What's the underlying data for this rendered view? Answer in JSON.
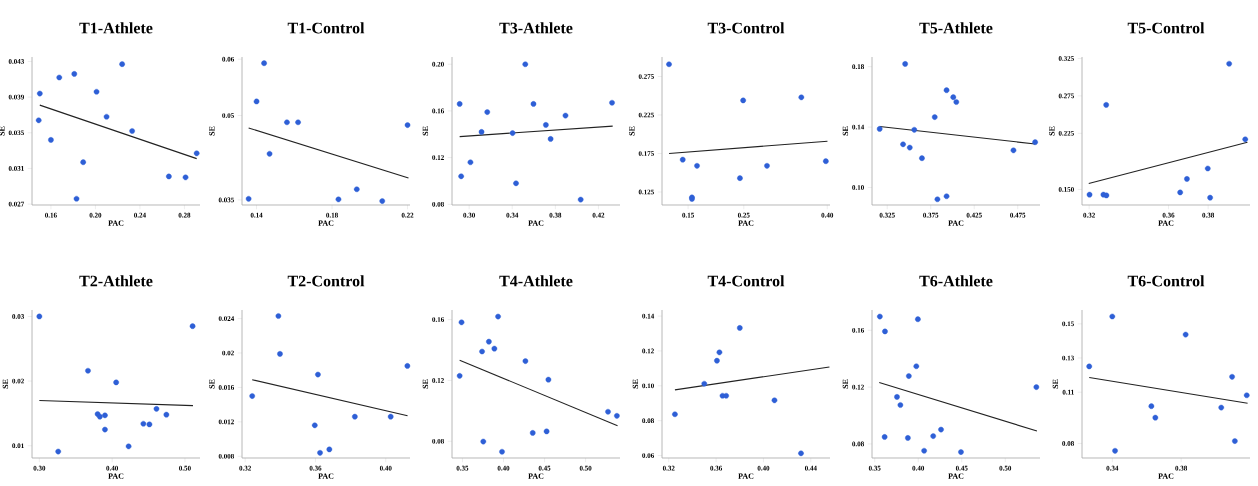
{
  "chart_data": [
    {
      "type": "scatter",
      "title": "T1-Athlete",
      "xlabel": "PAC",
      "ylabel": "SE",
      "xlim": [
        0.143,
        0.294
      ],
      "ylim": [
        0.0269,
        0.0435
      ],
      "xticks": [
        0.16,
        {
          "value": 0.2,
          "label": "0.20"
        },
        0.24,
        0.28
      ],
      "yticks": [
        0.027,
        0.031,
        0.035,
        0.039,
        0.043
      ],
      "series": [
        {
          "type": "scatter",
          "marker": "circle",
          "color": "#2e5fd6",
          "x": [
            0.15,
            0.149,
            0.16,
            0.1675,
            0.181,
            0.189,
            0.183,
            0.201,
            0.21,
            0.224,
            0.233,
            0.266,
            0.281,
            0.291
          ],
          "values": [
            0.0394,
            0.0364,
            0.0342,
            0.0412,
            0.0416,
            0.0317,
            0.0276,
            0.0396,
            0.0368,
            0.0427,
            0.0352,
            0.0301,
            0.03,
            0.0327
          ]
        },
        {
          "type": "line",
          "color": "#222222",
          "x": [
            0.15,
            0.291
          ],
          "values": [
            0.0381,
            0.0321
          ]
        }
      ]
    },
    {
      "type": "scatter",
      "title": "T1-Control",
      "xlabel": "PAC",
      "ylabel": "SE",
      "xlim": [
        0.1323,
        0.2213
      ],
      "ylim": [
        0.0341,
        0.0604
      ],
      "xticks": [
        0.14,
        0.18,
        0.22
      ],
      "yticks": [
        0.035,
        {
          "value": 0.05,
          "label": "0.05"
        },
        {
          "value": 0.06,
          "label": "0.06"
        }
      ],
      "series": [
        {
          "type": "scatter",
          "marker": "circle",
          "color": "#2e5fd6",
          "x": [
            0.1358,
            0.14,
            0.144,
            0.1469,
            0.1561,
            0.162,
            0.1834,
            0.1931,
            0.2066,
            0.22
          ],
          "values": [
            0.0352,
            0.0525,
            0.0593,
            0.0432,
            0.0488,
            0.0488,
            0.0351,
            0.0369,
            0.0348,
            0.0483
          ]
        },
        {
          "type": "line",
          "color": "#222222",
          "x": [
            0.1358,
            0.2205
          ],
          "values": [
            0.0478,
            0.0389
          ]
        }
      ]
    },
    {
      "type": "scatter",
      "title": "T3-Athlete",
      "xlabel": "PAC",
      "ylabel": "SE",
      "xlim": [
        0.2841,
        0.44
      ],
      "ylim": [
        0.0794,
        0.2062
      ],
      "xticks": [
        {
          "value": 0.3,
          "label": "0.30"
        },
        0.34,
        0.38,
        0.42
      ],
      "yticks": [
        0.08,
        0.12,
        0.16,
        {
          "value": 0.2,
          "label": "0.20"
        }
      ],
      "series": [
        {
          "type": "scatter",
          "marker": "circle",
          "color": "#2e5fd6",
          "x": [
            0.2912,
            0.2926,
            0.3012,
            0.3115,
            0.3168,
            0.3403,
            0.3435,
            0.3521,
            0.3597,
            0.3712,
            0.3756,
            0.3894,
            0.4035,
            0.4326
          ],
          "values": [
            0.166,
            0.104,
            0.116,
            0.142,
            0.159,
            0.141,
            0.098,
            0.2,
            0.166,
            0.148,
            0.136,
            0.156,
            0.084,
            0.167
          ]
        },
        {
          "type": "line",
          "color": "#222222",
          "x": [
            0.2912,
            0.4332
          ],
          "values": [
            0.138,
            0.147
          ]
        }
      ]
    },
    {
      "type": "scatter",
      "title": "T3-Control",
      "xlabel": "PAC",
      "ylabel": "SE",
      "xlim": [
        0.1031,
        0.4049
      ],
      "ylim": [
        0.1081,
        0.3004
      ],
      "xticks": [
        0.15,
        0.25,
        {
          "value": 0.4,
          "label": "0.40"
        }
      ],
      "yticks": [
        0.125,
        0.175,
        0.225,
        0.275
      ],
      "series": [
        {
          "type": "scatter",
          "marker": "circle",
          "color": "#2e5fd6",
          "x": [
            0.1157,
            0.1403,
            0.166,
            0.1569,
            0.1569,
            0.2431,
            0.2489,
            0.2917,
            0.3534,
            0.3974
          ],
          "values": [
            0.291,
            0.167,
            0.159,
            0.118,
            0.116,
            0.143,
            0.244,
            0.159,
            0.248,
            0.165
          ]
        },
        {
          "type": "line",
          "color": "#222222",
          "x": [
            0.1157,
            0.4003
          ],
          "values": [
            0.175,
            0.191
          ]
        }
      ]
    },
    {
      "type": "scatter",
      "title": "T5-Athlete",
      "xlabel": "PAC",
      "ylabel": "SE",
      "xlim": [
        0.3075,
        0.5006
      ],
      "ylim": [
        0.0884,
        0.1864
      ],
      "xticks": [
        0.325,
        0.375,
        0.425,
        0.475
      ],
      "yticks": [
        {
          "value": 0.1,
          "label": "0.10"
        },
        0.14,
        0.18
      ],
      "series": [
        {
          "type": "scatter",
          "marker": "circle",
          "color": "#2e5fd6",
          "x": [
            0.3163,
            0.3456,
            0.3432,
            0.3509,
            0.3561,
            0.3649,
            0.3796,
            0.3827,
            0.3932,
            0.3932,
            0.4009,
            0.4044,
            0.4701,
            0.495
          ],
          "values": [
            0.1388,
            0.1818,
            0.1286,
            0.1264,
            0.1382,
            0.1194,
            0.1466,
            0.0922,
            0.0942,
            0.1644,
            0.1598,
            0.1566,
            0.1246,
            0.13
          ]
        },
        {
          "type": "line",
          "color": "#222222",
          "x": [
            0.3163,
            0.495
          ],
          "values": [
            0.1404,
            0.1288
          ]
        }
      ]
    },
    {
      "type": "scatter",
      "title": "T5-Control",
      "xlabel": "PAC",
      "ylabel": "SE",
      "xlim": [
        0.3164,
        0.4011
      ],
      "ylim": [
        0.1292,
        0.327
      ],
      "xticks": [
        0.32,
        0.36,
        {
          "value": 0.38,
          "label": "0.38"
        }
      ],
      "yticks": [
        {
          "value": 0.15,
          "label": "0.150"
        },
        0.225,
        0.275,
        0.325
      ],
      "series": [
        {
          "type": "scatter",
          "marker": "circle",
          "color": "#2e5fd6",
          "x": [
            0.3202,
            0.3272,
            0.3287,
            0.3286,
            0.3659,
            0.3693,
            0.3798,
            0.381,
            0.3906,
            0.3987
          ],
          "values": [
            0.143,
            0.143,
            0.142,
            0.263,
            0.146,
            0.164,
            0.178,
            0.139,
            0.318,
            0.217
          ]
        },
        {
          "type": "line",
          "color": "#222222",
          "x": [
            0.3198,
            0.3998
          ],
          "values": [
            0.158,
            0.213
          ]
        }
      ]
    },
    {
      "type": "scatter",
      "title": "T2-Athlete",
      "xlabel": "PAC",
      "ylabel": "SE",
      "xlim": [
        0.2899,
        0.5207
      ],
      "ylim": [
        0.0081,
        0.031
      ],
      "xticks": [
        {
          "value": 0.3,
          "label": "0.30"
        },
        {
          "value": 0.4,
          "label": "0.40"
        },
        {
          "value": 0.5,
          "label": "0.50"
        }
      ],
      "yticks": [
        0.01,
        0.02,
        0.03
      ],
      "series": [
        {
          "type": "scatter",
          "marker": "circle",
          "color": "#2e5fd6",
          "x": [
            0.3,
            0.3259,
            0.3668,
            0.38,
            0.3831,
            0.3901,
            0.3901,
            0.4055,
            0.4226,
            0.4429,
            0.4512,
            0.4609,
            0.4745,
            0.5105
          ],
          "values": [
            0.03,
            0.0091,
            0.0216,
            0.0149,
            0.0145,
            0.0147,
            0.0125,
            0.0198,
            0.0099,
            0.0134,
            0.0133,
            0.0157,
            0.0148,
            0.0285
          ]
        },
        {
          "type": "line",
          "color": "#222222",
          "x": [
            0.3,
            0.511
          ],
          "values": [
            0.017,
            0.0162
          ]
        }
      ]
    },
    {
      "type": "scatter",
      "title": "T2-Control",
      "xlabel": "PAC",
      "ylabel": "SE",
      "xlim": [
        0.3182,
        0.4138
      ],
      "ylim": [
        0.0078,
        0.025
      ],
      "xticks": [
        0.32,
        0.36,
        {
          "value": 0.4,
          "label": "0.40"
        }
      ],
      "yticks": [
        0.008,
        0.012,
        0.016,
        {
          "value": 0.02,
          "label": "0.02"
        },
        0.024
      ],
      "series": [
        {
          "type": "scatter",
          "marker": "circle",
          "color": "#2e5fd6",
          "x": [
            0.324,
            0.3389,
            0.3398,
            0.3614,
            0.3596,
            0.3626,
            0.3679,
            0.3824,
            0.4028,
            0.4123
          ],
          "values": [
            0.015,
            0.0243,
            0.0199,
            0.0175,
            0.0116,
            0.0084,
            0.0088,
            0.0126,
            0.0126,
            0.0185
          ]
        },
        {
          "type": "line",
          "color": "#222222",
          "x": [
            0.324,
            0.4124
          ],
          "values": [
            0.0169,
            0.0127
          ]
        }
      ]
    },
    {
      "type": "scatter",
      "title": "T4-Athlete",
      "xlabel": "PAC",
      "ylabel": "SE",
      "xlim": [
        0.3373,
        0.5419
      ],
      "ylim": [
        0.069,
        0.1663
      ],
      "xticks": [
        0.35,
        {
          "value": 0.4,
          "label": "0.40"
        },
        0.45,
        {
          "value": 0.5,
          "label": "0.50"
        }
      ],
      "yticks": [
        0.08,
        0.12,
        0.16
      ],
      "series": [
        {
          "type": "scatter",
          "marker": "circle",
          "color": "#2e5fd6",
          "x": [
            0.3466,
            0.3489,
            0.3739,
            0.3754,
            0.3822,
            0.3889,
            0.3934,
            0.3982,
            0.4267,
            0.4356,
            0.4525,
            0.4547,
            0.5273,
            0.5381
          ],
          "values": [
            0.123,
            0.1582,
            0.139,
            0.0798,
            0.1455,
            0.1409,
            0.162,
            0.0731,
            0.1327,
            0.0855,
            0.0865,
            0.1205,
            0.0994,
            0.0967
          ]
        },
        {
          "type": "line",
          "color": "#222222",
          "x": [
            0.3466,
            0.5389
          ],
          "values": [
            0.1333,
            0.0902
          ]
        }
      ]
    },
    {
      "type": "scatter",
      "title": "T4-Control",
      "xlabel": "PAC",
      "ylabel": "SE",
      "xlim": [
        0.3143,
        0.4562
      ],
      "ylim": [
        0.0586,
        0.1435
      ],
      "xticks": [
        0.32,
        0.36,
        {
          "value": 0.4,
          "label": "0.40"
        },
        0.44
      ],
      "yticks": [
        0.06,
        0.08,
        {
          "value": 0.1,
          "label": "0.10"
        },
        0.12,
        0.14
      ],
      "series": [
        {
          "type": "scatter",
          "marker": "circle",
          "color": "#2e5fd6",
          "x": [
            0.3252,
            0.35,
            0.3607,
            0.3628,
            0.3654,
            0.3685,
            0.38,
            0.4093,
            0.4317
          ],
          "values": [
            0.0837,
            0.1012,
            0.1144,
            0.1192,
            0.0943,
            0.0943,
            0.1332,
            0.0917,
            0.0613
          ]
        },
        {
          "type": "line",
          "color": "#222222",
          "x": [
            0.3252,
            0.4557
          ],
          "values": [
            0.0977,
            0.1108
          ]
        }
      ]
    },
    {
      "type": "scatter",
      "title": "T6-Athlete",
      "xlabel": "PAC",
      "ylabel": "SE",
      "xlim": [
        0.3469,
        0.5399
      ],
      "ylim": [
        0.0701,
        0.1743
      ],
      "xticks": [
        0.35,
        {
          "value": 0.4,
          "label": "0.40"
        },
        0.45,
        {
          "value": 0.5,
          "label": "0.50"
        }
      ],
      "yticks": [
        0.08,
        0.12,
        0.16
      ],
      "series": [
        {
          "type": "scatter",
          "marker": "circle",
          "color": "#2e5fd6",
          "x": [
            0.3559,
            0.3618,
            0.3614,
            0.3756,
            0.3795,
            0.3881,
            0.3892,
            0.3978,
            0.3996,
            0.4068,
            0.4172,
            0.4262,
            0.4491,
            0.5357
          ],
          "values": [
            0.1697,
            0.1592,
            0.0849,
            0.1131,
            0.1074,
            0.0842,
            0.1278,
            0.1347,
            0.1678,
            0.0752,
            0.0855,
            0.0901,
            0.0743,
            0.12
          ]
        },
        {
          "type": "line",
          "color": "#222222",
          "x": [
            0.3552,
            0.5364
          ],
          "values": [
            0.1232,
            0.0891
          ]
        }
      ]
    },
    {
      "type": "scatter",
      "title": "T6-Control",
      "xlabel": "PAC",
      "ylabel": "SE",
      "xlim": [
        0.3224,
        0.42
      ],
      "ylim": [
        0.0715,
        0.1581
      ],
      "xticks": [
        0.34,
        0.38
      ],
      "yticks": [
        0.08,
        0.11,
        0.13,
        0.15
      ],
      "series": [
        {
          "type": "scatter",
          "marker": "circle",
          "color": "#2e5fd6",
          "x": [
            0.3266,
            0.34,
            0.3416,
            0.3627,
            0.365,
            0.3826,
            0.4033,
            0.4096,
            0.4112,
            0.4181
          ],
          "values": [
            0.1251,
            0.1543,
            0.0757,
            0.1018,
            0.0951,
            0.1437,
            0.101,
            0.119,
            0.0814,
            0.1082
          ]
        },
        {
          "type": "line",
          "color": "#222222",
          "x": [
            0.3266,
            0.4186
          ],
          "values": [
            0.1186,
            0.1035
          ]
        }
      ]
    }
  ]
}
